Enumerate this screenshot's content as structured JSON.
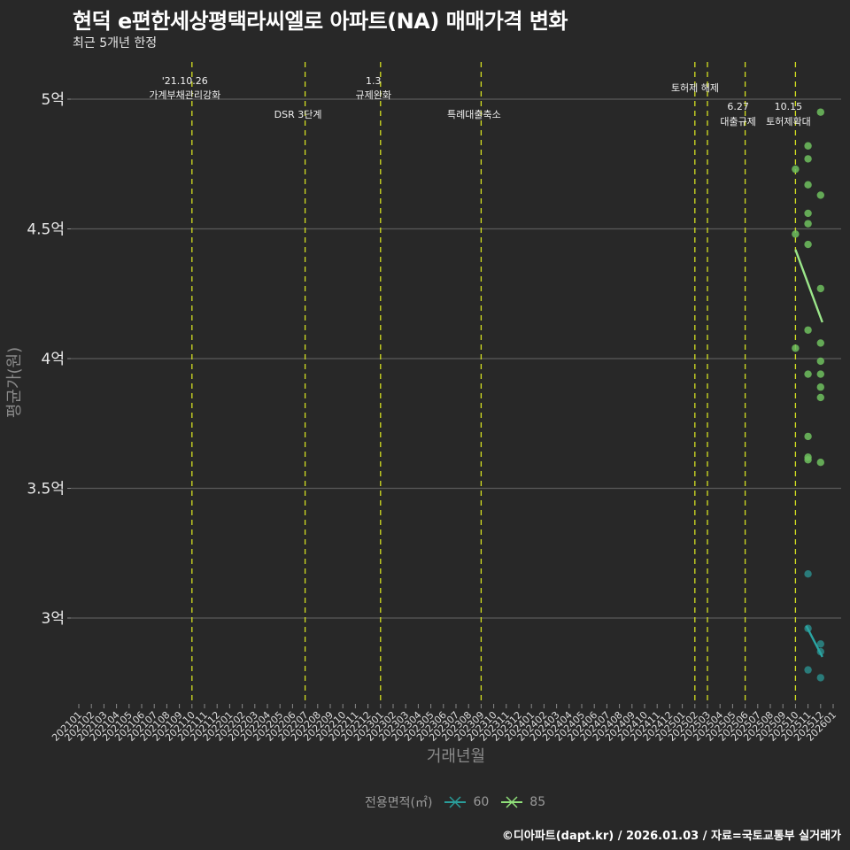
{
  "header": {
    "title": "현덕 e편한세상평택라씨엘로 아파트(NA) 매매가격 변화",
    "subtitle": "최근 5개년 한정"
  },
  "footer": {
    "credit": "©디아파트(dapt.kr) / 2026.01.03 / 자료=국토교통부 실거래가"
  },
  "legend": {
    "title": "전용면적(㎡)",
    "items": [
      {
        "label": "60",
        "color": "#2a9d9a"
      },
      {
        "label": "85",
        "color": "#90e07a"
      }
    ]
  },
  "colors": {
    "background": "#282828",
    "grid": "#5a5a5a",
    "event_line": "#d4e021",
    "series_60": "#2a8a88",
    "series_85": "#6fbf5e",
    "trend_60": "#2aa5a3",
    "trend_85": "#9be68a"
  },
  "chart_data": {
    "type": "scatter",
    "title": "현덕 e편한세상평택라씨엘로 아파트(NA) 매매가격 변화",
    "subtitle": "최근 5개년 한정",
    "xlabel": "거래년월",
    "ylabel": "평균가(원)",
    "y_ticks": [
      {
        "value": 5.0,
        "label": "5억"
      },
      {
        "value": 4.5,
        "label": "4.5억"
      },
      {
        "value": 4.0,
        "label": "4억"
      },
      {
        "value": 3.5,
        "label": "3.5억"
      },
      {
        "value": 3.0,
        "label": "3억"
      }
    ],
    "ylim": [
      2.65,
      5.15
    ],
    "y_unit": "억",
    "grid": true,
    "legend_position": "bottom",
    "x_ticks": [
      "202101",
      "202102",
      "202103",
      "202104",
      "202105",
      "202106",
      "202107",
      "202108",
      "202109",
      "202110",
      "202111",
      "202112",
      "202201",
      "202202",
      "202203",
      "202204",
      "202205",
      "202206",
      "202207",
      "202208",
      "202209",
      "202210",
      "202211",
      "202212",
      "202301",
      "202302",
      "202303",
      "202304",
      "202305",
      "202306",
      "202307",
      "202308",
      "202309",
      "202310",
      "202311",
      "202312",
      "202401",
      "202402",
      "202403",
      "202404",
      "202405",
      "202406",
      "202407",
      "202408",
      "202409",
      "202410",
      "202411",
      "202412",
      "202501",
      "202502",
      "202503",
      "202504",
      "202505",
      "202506",
      "202507",
      "202508",
      "202509",
      "202510",
      "202511",
      "202512",
      "202601"
    ],
    "events": [
      {
        "x": "202110",
        "line1": "'21.10.26",
        "line2": "가계부채관리강화",
        "row": 0
      },
      {
        "x": "202207",
        "line1": "",
        "line2": "DSR 3단계",
        "row": 1
      },
      {
        "x": "202301",
        "line1": "1.3",
        "line2": "규제완화",
        "row": 0
      },
      {
        "x": "202309",
        "line1": "",
        "line2": "특례대출축소",
        "row": 1
      },
      {
        "x": "202502",
        "line1": "",
        "line2": "",
        "row": 0
      },
      {
        "x": "202503",
        "line1": "",
        "line2": "토허제 해제",
        "row": 2
      },
      {
        "x": "202506",
        "line1": "6.27",
        "line2": "대출규제",
        "row": 3
      },
      {
        "x": "202510",
        "line1": "10.15",
        "line2": "토허제확대",
        "row": 3
      }
    ],
    "series": [
      {
        "name": "60",
        "points": [
          {
            "x": "202511",
            "y": 3.17
          },
          {
            "x": "202511",
            "y": 2.96
          },
          {
            "x": "202511",
            "y": 2.8
          },
          {
            "x": "202512",
            "y": 2.9
          },
          {
            "x": "202512",
            "y": 2.87
          },
          {
            "x": "202512",
            "y": 2.77
          }
        ],
        "trend": [
          {
            "x": "202511",
            "y": 2.97
          },
          {
            "x": "202512",
            "y": 2.85
          }
        ]
      },
      {
        "name": "85",
        "points": [
          {
            "x": "202510",
            "y": 4.73
          },
          {
            "x": "202510",
            "y": 4.48
          },
          {
            "x": "202510",
            "y": 4.04
          },
          {
            "x": "202511",
            "y": 4.82
          },
          {
            "x": "202511",
            "y": 4.77
          },
          {
            "x": "202511",
            "y": 4.67
          },
          {
            "x": "202511",
            "y": 4.56
          },
          {
            "x": "202511",
            "y": 4.52
          },
          {
            "x": "202511",
            "y": 4.44
          },
          {
            "x": "202511",
            "y": 4.11
          },
          {
            "x": "202511",
            "y": 3.94
          },
          {
            "x": "202511",
            "y": 3.7
          },
          {
            "x": "202511",
            "y": 3.62
          },
          {
            "x": "202511",
            "y": 3.61
          },
          {
            "x": "202512",
            "y": 4.95
          },
          {
            "x": "202512",
            "y": 4.63
          },
          {
            "x": "202512",
            "y": 4.27
          },
          {
            "x": "202512",
            "y": 4.06
          },
          {
            "x": "202512",
            "y": 3.99
          },
          {
            "x": "202512",
            "y": 3.94
          },
          {
            "x": "202512",
            "y": 3.89
          },
          {
            "x": "202512",
            "y": 3.85
          },
          {
            "x": "202512",
            "y": 3.6
          }
        ],
        "trend": [
          {
            "x": "202510",
            "y": 4.42
          },
          {
            "x": "202512",
            "y": 4.14
          }
        ]
      }
    ]
  }
}
